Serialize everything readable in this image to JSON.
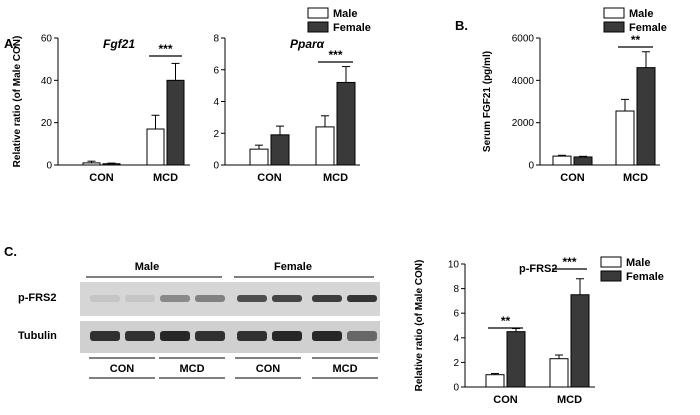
{
  "panels": {
    "a": "A.",
    "b": "B.",
    "c": "C."
  },
  "colors": {
    "male": "#ffffff",
    "female": "#3a3a3a",
    "stroke": "#000000"
  },
  "chart_data": [
    {
      "id": "fgf21",
      "type": "bar",
      "title": "Fgf21",
      "ylabel": "Relative ratio (of Male CON)",
      "xlabel": "",
      "categories": [
        "CON",
        "MCD"
      ],
      "ylim": [
        0,
        60
      ],
      "yticks": [
        "0",
        "20",
        "40",
        "60"
      ],
      "ytickvals": [
        0,
        20,
        40,
        60
      ],
      "series": [
        {
          "name": "Male",
          "values": [
            1.0,
            17.0
          ],
          "errors": [
            0.8,
            6.5
          ]
        },
        {
          "name": "Female",
          "values": [
            0.6,
            40.0
          ],
          "errors": [
            0.3,
            8.0
          ]
        }
      ],
      "annotations": [
        {
          "category": 1,
          "text": "***"
        }
      ],
      "legend": "top-right"
    },
    {
      "id": "ppara",
      "type": "bar",
      "title": "Pparα",
      "ylabel": "",
      "xlabel": "",
      "categories": [
        "CON",
        "MCD"
      ],
      "ylim": [
        0,
        8
      ],
      "yticks": [
        "0",
        "2",
        "4",
        "6",
        "8"
      ],
      "ytickvals": [
        0,
        2,
        4,
        6,
        8
      ],
      "series": [
        {
          "name": "Male",
          "values": [
            1.0,
            2.4
          ],
          "errors": [
            0.25,
            0.7
          ]
        },
        {
          "name": "Female",
          "values": [
            1.9,
            5.2
          ],
          "errors": [
            0.55,
            1.0
          ]
        }
      ],
      "annotations": [
        {
          "category": 1,
          "text": "***"
        }
      ]
    },
    {
      "id": "serum",
      "type": "bar",
      "title": "",
      "ylabel": "Serum FGF21 (pg/ml)",
      "xlabel": "",
      "categories": [
        "CON",
        "MCD"
      ],
      "ylim": [
        0,
        6000
      ],
      "yticks": [
        "0",
        "2000",
        "4000",
        "6000"
      ],
      "ytickvals": [
        0,
        2000,
        4000,
        6000
      ],
      "series": [
        {
          "name": "Male",
          "values": [
            420,
            2550
          ],
          "errors": [
            40,
            550
          ]
        },
        {
          "name": "Female",
          "values": [
            380,
            4600
          ],
          "errors": [
            30,
            750
          ]
        }
      ],
      "annotations": [
        {
          "category": 1,
          "text": "**"
        }
      ],
      "legend": "top-right"
    },
    {
      "id": "pfrs2",
      "type": "bar",
      "title": "p-FRS2",
      "ylabel": "Relative ratio (of Male CON)",
      "xlabel": "",
      "categories": [
        "CON",
        "MCD"
      ],
      "ylim": [
        0,
        10
      ],
      "yticks": [
        "0",
        "2",
        "4",
        "6",
        "8",
        "10"
      ],
      "ytickvals": [
        0,
        2,
        4,
        6,
        8,
        10
      ],
      "series": [
        {
          "name": "Male",
          "values": [
            1.0,
            2.3
          ],
          "errors": [
            0.1,
            0.3
          ]
        },
        {
          "name": "Female",
          "values": [
            4.5,
            7.5
          ],
          "errors": [
            0.25,
            1.3
          ]
        }
      ],
      "annotations": [
        {
          "category": 0,
          "text": "**"
        },
        {
          "category": 1,
          "text": "***"
        }
      ],
      "legend": "top-right"
    }
  ],
  "blot": {
    "groups": [
      "Male",
      "Female"
    ],
    "rows": [
      "p-FRS2",
      "Tubulin"
    ],
    "lanes": [
      "CON",
      "MCD",
      "CON",
      "MCD"
    ],
    "pfrs2_intensity": [
      0.05,
      0.05,
      0.4,
      0.45,
      0.75,
      0.8,
      0.85,
      0.9
    ],
    "tubulin_intensity": [
      0.85,
      0.85,
      0.9,
      0.85,
      0.85,
      0.9,
      0.9,
      0.55
    ]
  }
}
